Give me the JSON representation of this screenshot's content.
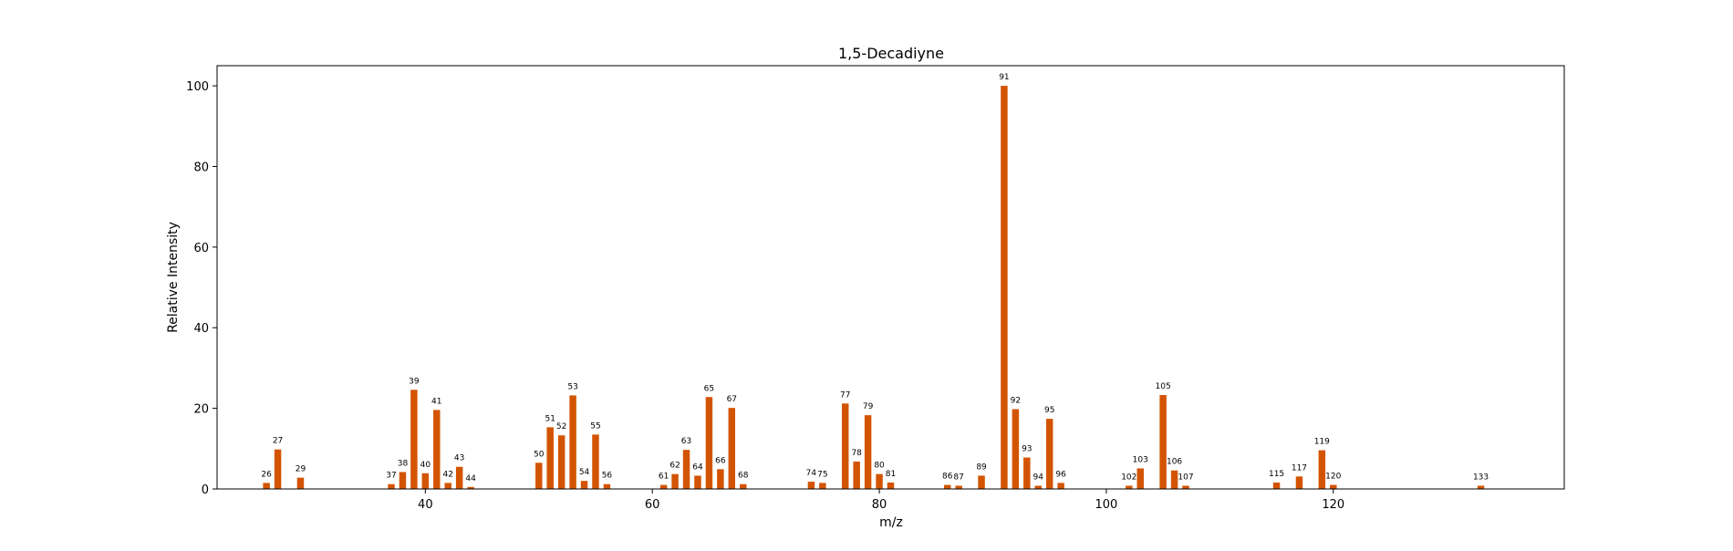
{
  "chart_data": {
    "type": "bar",
    "title": "1,5-Decadiyne",
    "xlabel": "m/z",
    "ylabel": "Relative Intensity",
    "xlim": [
      21.65,
      140.35
    ],
    "ylim": [
      0,
      105
    ],
    "xticks": [
      40,
      60,
      80,
      100,
      120
    ],
    "yticks": [
      0,
      20,
      40,
      60,
      80,
      100
    ],
    "bar_color": "#d35400",
    "grid": false,
    "legend": "none",
    "x": [
      26,
      27,
      29,
      37,
      38,
      39,
      40,
      41,
      42,
      43,
      44,
      50,
      51,
      52,
      53,
      54,
      55,
      56,
      61,
      62,
      63,
      64,
      65,
      66,
      67,
      68,
      74,
      75,
      77,
      78,
      79,
      80,
      81,
      86,
      87,
      89,
      91,
      92,
      93,
      94,
      95,
      96,
      102,
      103,
      105,
      106,
      107,
      115,
      117,
      119,
      120,
      133
    ],
    "values": [
      1.5,
      9.8,
      2.8,
      1.2,
      4.2,
      24.6,
      3.9,
      19.6,
      1.5,
      5.5,
      0.5,
      6.5,
      15.3,
      13.3,
      23.2,
      2.0,
      13.5,
      1.2,
      1.0,
      3.7,
      9.7,
      3.3,
      22.8,
      4.9,
      20.1,
      1.2,
      1.8,
      1.5,
      21.2,
      6.8,
      18.3,
      3.7,
      1.6,
      1.0,
      0.8,
      3.3,
      100.0,
      19.8,
      7.8,
      0.8,
      17.4,
      1.5,
      0.8,
      5.1,
      23.3,
      4.6,
      0.8,
      1.6,
      3.1,
      9.6,
      1.0,
      0.8
    ]
  }
}
